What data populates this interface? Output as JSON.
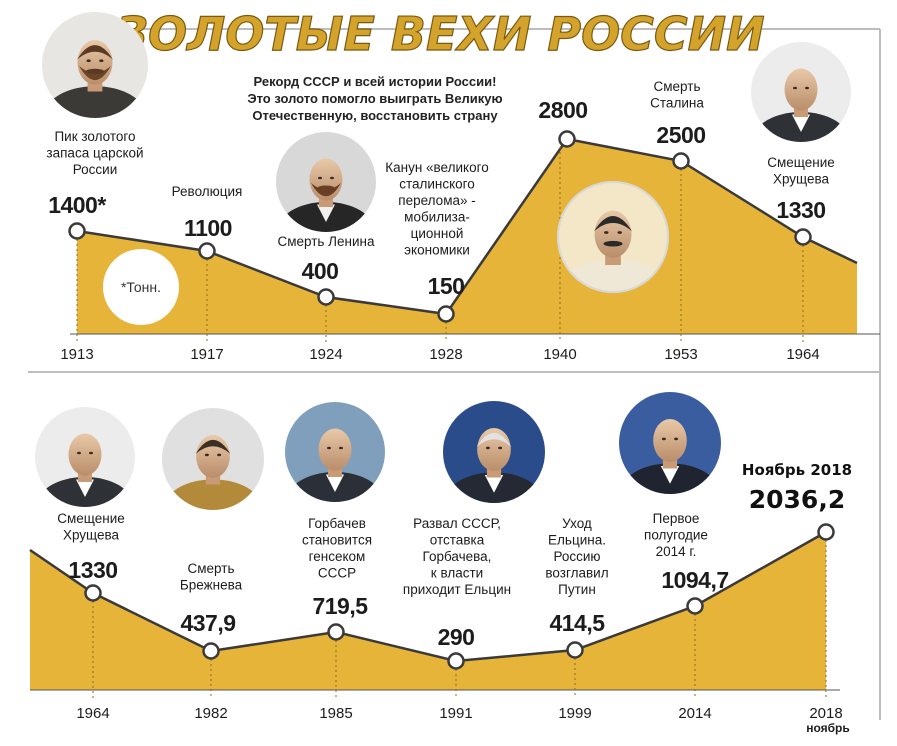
{
  "title": "ЗОЛОТЫЕ ВЕХИ РОССИИ",
  "record_note": [
    "Рекорд СССР и всей истории России!",
    "Это золото помогло выиграть Великую",
    "Отечественную, восстановить страну"
  ],
  "units_note": "*Тонн.",
  "colors": {
    "area": "#e7b43a",
    "title": "#d4a32c",
    "line": "#3a3a3a",
    "marker_fill": "#ffffff"
  },
  "chart_data": [
    {
      "type": "area",
      "x": [
        "1913",
        "1917",
        "1924",
        "1928",
        "1940",
        "1953",
        "1964"
      ],
      "values": [
        1400,
        1100,
        400,
        150,
        2800,
        2500,
        1330
      ],
      "value_labels": [
        "1400*",
        "1100",
        "400",
        "150",
        "2800",
        "2500",
        "1330"
      ],
      "events": [
        [
          "Пик золотого",
          "запаса царской",
          "России"
        ],
        [
          "Революция"
        ],
        [
          "Смерть Ленина"
        ],
        [
          "Канун «великого",
          "сталинского",
          "перелома» -",
          "мобилиза-",
          "ционной",
          "экономики"
        ],
        [],
        [
          "Смерть",
          "Сталина"
        ],
        [
          "Смещение",
          "Хрущева"
        ]
      ],
      "portraits": [
        "nicholas-ii-portrait",
        "lenin-portrait",
        "stalin-portrait",
        "khrushchev-portrait"
      ]
    },
    {
      "type": "area",
      "x": [
        "1964",
        "1982",
        "1985",
        "1991",
        "1999",
        "2014",
        "2018"
      ],
      "x_sublabels": [
        "",
        "",
        "",
        "",
        "",
        "",
        "ноябрь"
      ],
      "values": [
        1330,
        437.9,
        719.5,
        290,
        414.5,
        1094.7,
        2036.2
      ],
      "value_labels": [
        "1330",
        "437,9",
        "719,5",
        "290",
        "414,5",
        "1094,7",
        "2036,2"
      ],
      "events": [
        [
          "Смещение",
          "Хрущева"
        ],
        [
          "Смерть",
          "Брежнева"
        ],
        [
          "Горбачев",
          "становится",
          "генсеком",
          "СССР"
        ],
        [
          "Развал СССР,",
          "отставка",
          "Горбачева,",
          "к власти",
          "приходит Ельцин"
        ],
        [
          "Уход",
          "Ельцина.",
          "Россию",
          "возглавил",
          "Путин"
        ],
        [
          "Первое",
          "полугодие",
          "2014 г."
        ],
        [
          "Ноябрь 2018"
        ]
      ],
      "portraits": [
        "khrushchev-portrait",
        "brezhnev-portrait",
        "gorbachev-portrait",
        "yeltsin-portrait",
        "putin-portrait"
      ]
    }
  ]
}
